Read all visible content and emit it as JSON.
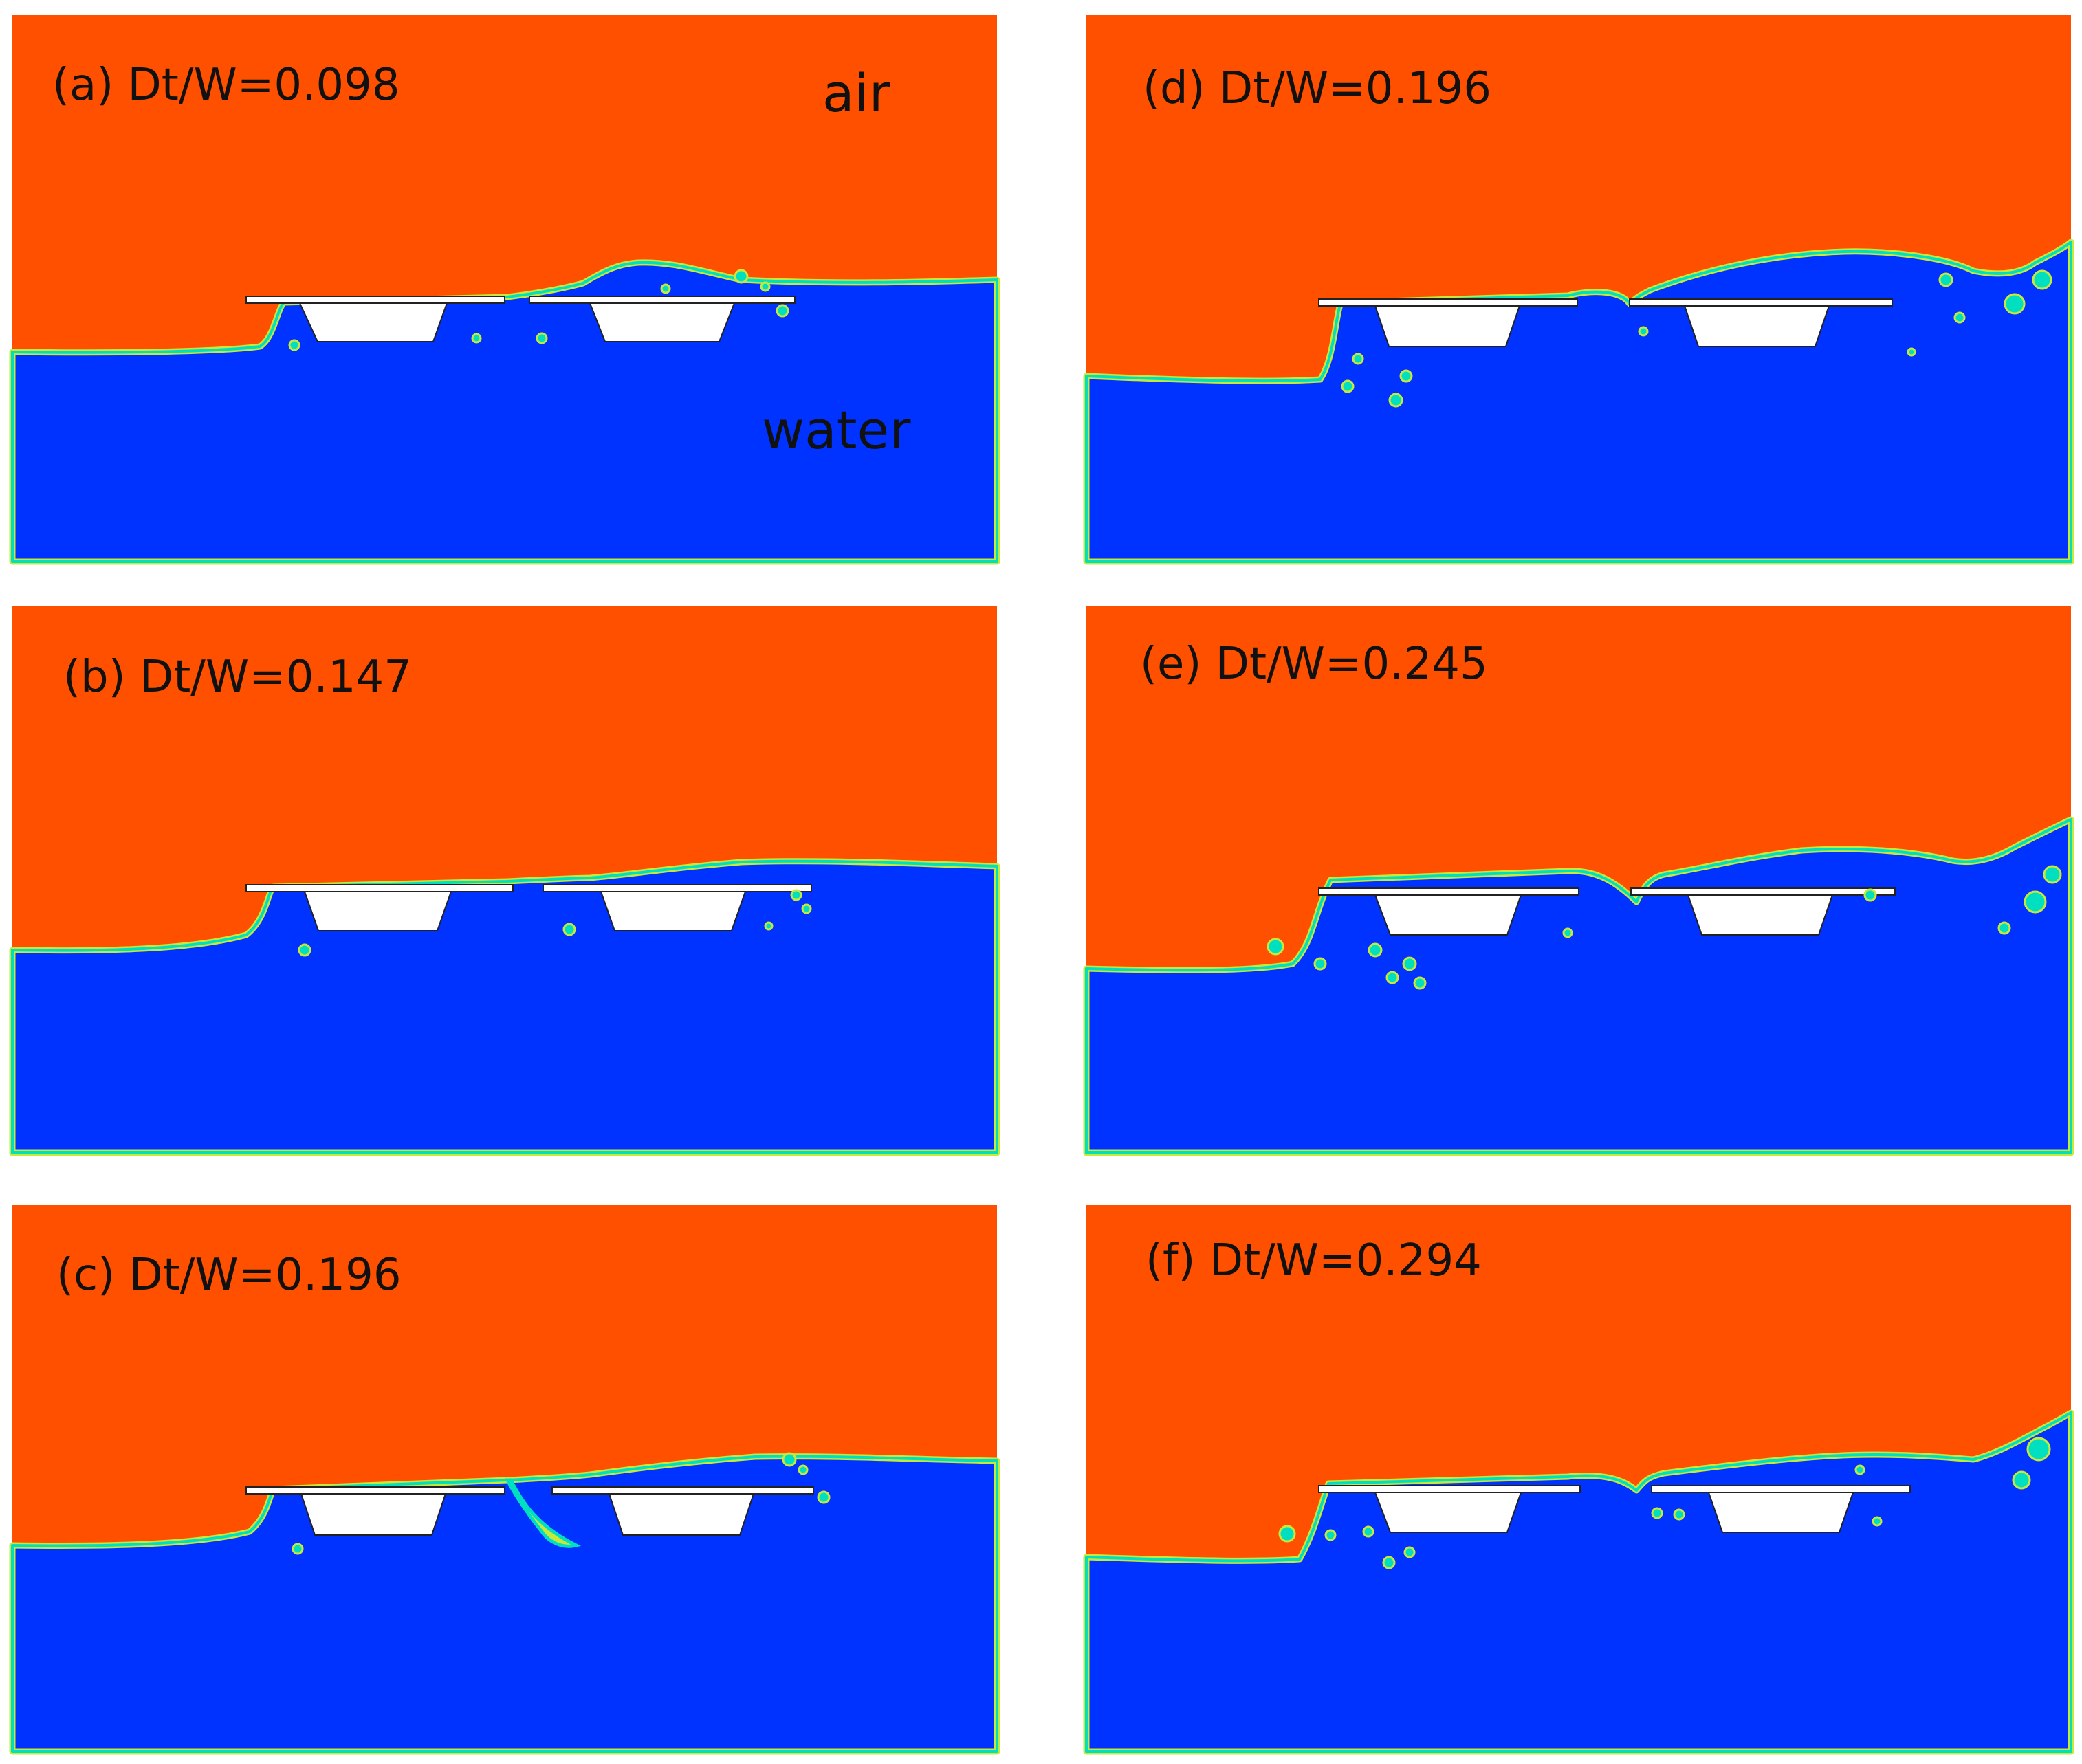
{
  "colors": {
    "air": "#ff5000",
    "water": "#0033ff",
    "interface_inner": "#00e0c0",
    "interface_outer": "#c8e83a",
    "structure": "#ffffff",
    "structure_outline": "#222222"
  },
  "annotations": {
    "air_label": "air",
    "water_label": "water"
  },
  "panels": [
    {
      "id": "a",
      "label": "(a) Dt/W=0.098"
    },
    {
      "id": "b",
      "label": "(b) Dt/W=0.147"
    },
    {
      "id": "c",
      "label": "(c) Dt/W=0.196"
    },
    {
      "id": "d",
      "label": "(d) Dt/W=0.196"
    },
    {
      "id": "e",
      "label": "(e) Dt/W=0.245"
    },
    {
      "id": "f",
      "label": "(f) Dt/W=0.294"
    }
  ]
}
